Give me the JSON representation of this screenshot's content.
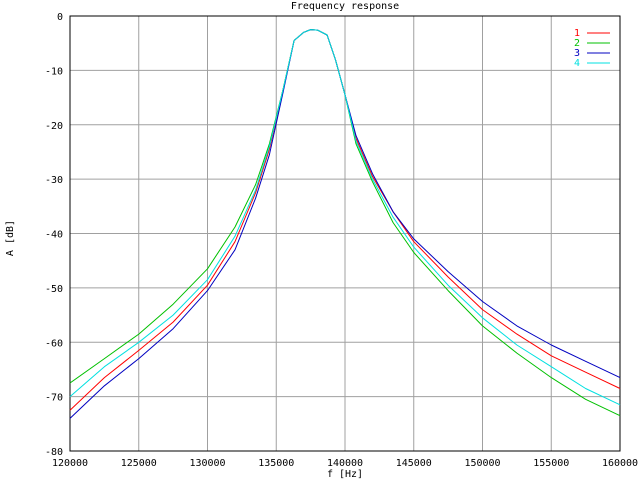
{
  "chart_data": {
    "type": "line",
    "title": "Frequency response",
    "xlabel": "f [Hz]",
    "ylabel": "A [dB]",
    "xlim": [
      120000,
      160000
    ],
    "ylim": [
      -80,
      0
    ],
    "xticks": [
      120000,
      125000,
      130000,
      135000,
      140000,
      145000,
      150000,
      155000,
      160000
    ],
    "yticks": [
      0,
      -10,
      -20,
      -30,
      -40,
      -50,
      -60,
      -70,
      -80
    ],
    "grid": true,
    "legend_position": "top-right",
    "series": [
      {
        "name": "1",
        "color": "#ff0000",
        "points": [
          [
            120000,
            -72.5
          ],
          [
            122500,
            -66.5
          ],
          [
            125000,
            -61.5
          ],
          [
            127500,
            -56.3
          ],
          [
            130000,
            -49.5
          ],
          [
            132000,
            -41.5
          ],
          [
            133500,
            -32.5
          ],
          [
            134500,
            -24.5
          ],
          [
            135500,
            -13.5
          ],
          [
            136300,
            -4.5
          ],
          [
            137000,
            -3.0
          ],
          [
            137500,
            -2.5
          ],
          [
            138000,
            -2.6
          ],
          [
            138700,
            -3.5
          ],
          [
            139300,
            -8.0
          ],
          [
            140000,
            -14.5
          ],
          [
            140800,
            -22.5
          ],
          [
            142000,
            -29.5
          ],
          [
            143500,
            -36.0
          ],
          [
            145000,
            -41.5
          ],
          [
            147500,
            -48.0
          ],
          [
            150000,
            -54.0
          ],
          [
            152500,
            -58.5
          ],
          [
            155000,
            -62.5
          ],
          [
            157500,
            -65.5
          ],
          [
            160000,
            -68.5
          ]
        ]
      },
      {
        "name": "2",
        "color": "#00c000",
        "points": [
          [
            120000,
            -67.5
          ],
          [
            122500,
            -63.0
          ],
          [
            125000,
            -58.5
          ],
          [
            127500,
            -53.0
          ],
          [
            130000,
            -46.5
          ],
          [
            132000,
            -38.8
          ],
          [
            133500,
            -31.0
          ],
          [
            134500,
            -23.5
          ],
          [
            135500,
            -13.5
          ],
          [
            136300,
            -4.5
          ],
          [
            137000,
            -3.0
          ],
          [
            137500,
            -2.5
          ],
          [
            138000,
            -2.6
          ],
          [
            138700,
            -3.5
          ],
          [
            139300,
            -8.0
          ],
          [
            140000,
            -14.5
          ],
          [
            140800,
            -23.5
          ],
          [
            142000,
            -30.5
          ],
          [
            143500,
            -38.0
          ],
          [
            145000,
            -43.5
          ],
          [
            147500,
            -50.5
          ],
          [
            150000,
            -57.0
          ],
          [
            152500,
            -62.0
          ],
          [
            155000,
            -66.5
          ],
          [
            157500,
            -70.5
          ],
          [
            160000,
            -73.5
          ]
        ]
      },
      {
        "name": "3",
        "color": "#0000c0",
        "points": [
          [
            120000,
            -74.0
          ],
          [
            122500,
            -68.0
          ],
          [
            125000,
            -63.0
          ],
          [
            127500,
            -57.5
          ],
          [
            130000,
            -50.5
          ],
          [
            132000,
            -43.0
          ],
          [
            133500,
            -33.5
          ],
          [
            134500,
            -25.5
          ],
          [
            135500,
            -14.0
          ],
          [
            136300,
            -4.5
          ],
          [
            137000,
            -3.0
          ],
          [
            137500,
            -2.5
          ],
          [
            138000,
            -2.6
          ],
          [
            138700,
            -3.5
          ],
          [
            139300,
            -8.0
          ],
          [
            140000,
            -14.5
          ],
          [
            140800,
            -22.0
          ],
          [
            142000,
            -29.0
          ],
          [
            143500,
            -36.0
          ],
          [
            145000,
            -41.0
          ],
          [
            147500,
            -47.0
          ],
          [
            150000,
            -52.5
          ],
          [
            152500,
            -57.0
          ],
          [
            155000,
            -60.5
          ],
          [
            157500,
            -63.5
          ],
          [
            160000,
            -66.5
          ]
        ]
      },
      {
        "name": "4",
        "color": "#00e0e0",
        "points": [
          [
            120000,
            -70.0
          ],
          [
            122500,
            -64.5
          ],
          [
            125000,
            -60.0
          ],
          [
            127500,
            -55.0
          ],
          [
            130000,
            -48.5
          ],
          [
            132000,
            -40.5
          ],
          [
            133500,
            -32.0
          ],
          [
            134500,
            -24.0
          ],
          [
            135500,
            -13.5
          ],
          [
            136300,
            -4.5
          ],
          [
            137000,
            -3.0
          ],
          [
            137500,
            -2.5
          ],
          [
            138000,
            -2.6
          ],
          [
            138700,
            -3.5
          ],
          [
            139300,
            -8.0
          ],
          [
            140000,
            -14.5
          ],
          [
            140800,
            -23.0
          ],
          [
            142000,
            -30.0
          ],
          [
            143500,
            -37.0
          ],
          [
            145000,
            -42.5
          ],
          [
            147500,
            -49.5
          ],
          [
            150000,
            -55.5
          ],
          [
            152500,
            -60.5
          ],
          [
            155000,
            -64.5
          ],
          [
            157500,
            -68.5
          ],
          [
            160000,
            -71.5
          ]
        ]
      }
    ]
  }
}
